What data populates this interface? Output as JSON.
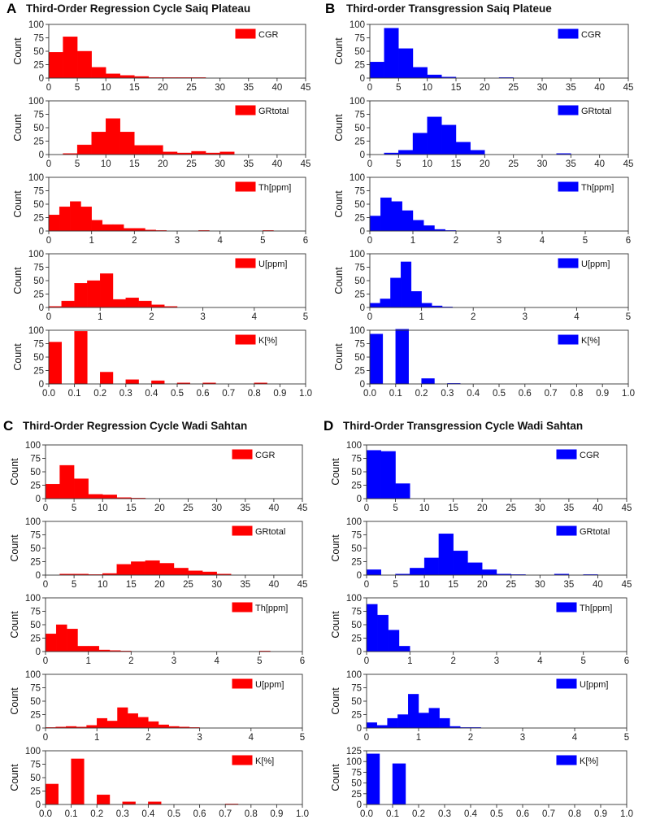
{
  "colors": {
    "red": "#ff0000",
    "blue": "#0000ff"
  },
  "chart_data": [
    {
      "panel_label": "A",
      "title": "Third-Order Regression Cycle Saiq Plateau",
      "color": "red",
      "subplots": [
        {
          "type": "bar",
          "legend": "CGR",
          "ylabel": "Count",
          "xlim": [
            0,
            45
          ],
          "xticks": [
            0,
            5,
            10,
            15,
            20,
            25,
            30,
            35,
            40,
            45
          ],
          "ylim": [
            0,
            100
          ],
          "yticks": [
            0,
            25,
            50,
            75,
            100
          ],
          "bin_width": 2.5,
          "bins": [
            0,
            2.5,
            5,
            7.5,
            10,
            12.5,
            15,
            17.5,
            20,
            22.5,
            25,
            27.5,
            30
          ],
          "values": [
            48,
            77,
            50,
            20,
            8,
            5,
            3,
            1,
            1,
            1,
            1,
            0,
            0
          ]
        },
        {
          "type": "bar",
          "legend": "GRtotal",
          "ylabel": "Count",
          "xlim": [
            0,
            45
          ],
          "xticks": [
            0,
            5,
            10,
            15,
            20,
            25,
            30,
            35,
            40,
            45
          ],
          "ylim": [
            0,
            100
          ],
          "yticks": [
            0,
            25,
            50,
            75,
            100
          ],
          "bin_width": 2.5,
          "bins": [
            2.5,
            5,
            7.5,
            10,
            12.5,
            15,
            17.5,
            20,
            22.5,
            25,
            27.5,
            30
          ],
          "values": [
            2,
            18,
            42,
            67,
            42,
            17,
            17,
            5,
            3,
            6,
            3,
            5
          ]
        },
        {
          "type": "bar",
          "legend": "Th[ppm]",
          "ylabel": "Count",
          "xlim": [
            0,
            6
          ],
          "xticks": [
            0,
            1,
            2,
            3,
            4,
            5,
            6
          ],
          "ylim": [
            0,
            100
          ],
          "yticks": [
            0,
            25,
            50,
            75,
            100
          ],
          "bin_width": 0.25,
          "bins": [
            0,
            0.25,
            0.5,
            0.75,
            1,
            1.25,
            1.5,
            1.75,
            2,
            2.25,
            2.5,
            3.5,
            5
          ],
          "values": [
            30,
            45,
            55,
            45,
            20,
            12,
            12,
            5,
            5,
            2,
            1,
            1,
            1
          ]
        },
        {
          "type": "bar",
          "legend": "U[ppm]",
          "ylabel": "Count",
          "xlim": [
            0,
            5
          ],
          "xticks": [
            0,
            1,
            2,
            3,
            4,
            5
          ],
          "ylim": [
            0,
            100
          ],
          "yticks": [
            0,
            25,
            50,
            75,
            100
          ],
          "bin_width": 0.25,
          "bins": [
            0,
            0.25,
            0.5,
            0.75,
            1,
            1.25,
            1.5,
            1.75,
            2,
            2.25
          ],
          "values": [
            2,
            12,
            45,
            50,
            63,
            15,
            18,
            12,
            5,
            2
          ]
        },
        {
          "type": "bar",
          "legend": "K[%]",
          "ylabel": "Count",
          "xlim": [
            0,
            1
          ],
          "xticks": [
            0.0,
            0.1,
            0.2,
            0.3,
            0.4,
            0.5,
            0.6,
            0.7,
            0.8,
            0.9,
            1.0
          ],
          "ylim": [
            0,
            100
          ],
          "yticks": [
            0,
            25,
            50,
            75,
            100
          ],
          "bin_width": 0.05,
          "bins": [
            0,
            0.1,
            0.2,
            0.3,
            0.4,
            0.5,
            0.6,
            0.8
          ],
          "values": [
            78,
            98,
            22,
            8,
            6,
            2,
            2,
            2
          ]
        }
      ]
    },
    {
      "panel_label": "B",
      "title": "Third-order Transgression Saiq Plateue",
      "color": "blue",
      "subplots": [
        {
          "type": "bar",
          "legend": "CGR",
          "ylabel": "Count",
          "xlim": [
            0,
            45
          ],
          "xticks": [
            0,
            5,
            10,
            15,
            20,
            25,
            30,
            35,
            40,
            45
          ],
          "ylim": [
            0,
            100
          ],
          "yticks": [
            0,
            25,
            50,
            75,
            100
          ],
          "bin_width": 2.5,
          "bins": [
            0,
            2.5,
            5,
            7.5,
            10,
            12.5,
            22.5
          ],
          "values": [
            30,
            93,
            55,
            20,
            6,
            2,
            1
          ]
        },
        {
          "type": "bar",
          "legend": "GRtotal",
          "ylabel": "Count",
          "xlim": [
            0,
            45
          ],
          "xticks": [
            0,
            5,
            10,
            15,
            20,
            25,
            30,
            35,
            40,
            45
          ],
          "ylim": [
            0,
            100
          ],
          "yticks": [
            0,
            25,
            50,
            75,
            100
          ],
          "bin_width": 2.5,
          "bins": [
            2.5,
            5,
            7.5,
            10,
            12.5,
            15,
            17.5,
            32.5
          ],
          "values": [
            3,
            8,
            40,
            70,
            55,
            23,
            8,
            2
          ]
        },
        {
          "type": "bar",
          "legend": "Th[ppm]",
          "ylabel": "Count",
          "xlim": [
            0,
            6
          ],
          "xticks": [
            0,
            1,
            2,
            3,
            4,
            5,
            6
          ],
          "ylim": [
            0,
            100
          ],
          "yticks": [
            0,
            25,
            50,
            75,
            100
          ],
          "bin_width": 0.25,
          "bins": [
            0,
            0.25,
            0.5,
            0.75,
            1,
            1.25,
            1.5,
            1.75
          ],
          "values": [
            28,
            62,
            55,
            38,
            20,
            10,
            3,
            1
          ]
        },
        {
          "type": "bar",
          "legend": "U[ppm]",
          "ylabel": "Count",
          "xlim": [
            0,
            5
          ],
          "xticks": [
            0,
            1,
            2,
            3,
            4,
            5
          ],
          "ylim": [
            0,
            100
          ],
          "yticks": [
            0,
            25,
            50,
            75,
            100
          ],
          "bin_width": 0.2,
          "bins": [
            0,
            0.2,
            0.4,
            0.6,
            0.8,
            1.0,
            1.2,
            1.4
          ],
          "values": [
            8,
            16,
            55,
            85,
            30,
            8,
            3,
            1
          ]
        },
        {
          "type": "bar",
          "legend": "K[%]",
          "ylabel": "Count",
          "xlim": [
            0,
            1
          ],
          "xticks": [
            0.0,
            0.1,
            0.2,
            0.3,
            0.4,
            0.5,
            0.6,
            0.7,
            0.8,
            0.9,
            1.0
          ],
          "ylim": [
            0,
            100
          ],
          "yticks": [
            0,
            25,
            50,
            75,
            100
          ],
          "bin_width": 0.05,
          "bins": [
            0,
            0.1,
            0.2,
            0.3
          ],
          "values": [
            93,
            102,
            10,
            1
          ]
        }
      ]
    },
    {
      "panel_label": "C",
      "title": "Third-Order Regression Cycle Wadi Sahtan",
      "color": "red",
      "subplots": [
        {
          "type": "bar",
          "legend": "CGR",
          "ylabel": "Count",
          "xlim": [
            0,
            45
          ],
          "xticks": [
            0,
            5,
            10,
            15,
            20,
            25,
            30,
            35,
            40,
            45
          ],
          "ylim": [
            0,
            100
          ],
          "yticks": [
            0,
            25,
            50,
            75,
            100
          ],
          "bin_width": 2.5,
          "bins": [
            0,
            2.5,
            5,
            7.5,
            10,
            12.5,
            15
          ],
          "values": [
            27,
            62,
            37,
            8,
            7,
            2,
            1
          ]
        },
        {
          "type": "bar",
          "legend": "GRtotal",
          "ylabel": "Count",
          "xlim": [
            0,
            45
          ],
          "xticks": [
            0,
            5,
            10,
            15,
            20,
            25,
            30,
            35,
            40,
            45
          ],
          "ylim": [
            0,
            100
          ],
          "yticks": [
            0,
            25,
            50,
            75,
            100
          ],
          "bin_width": 2.5,
          "bins": [
            2.5,
            5,
            7.5,
            10,
            12.5,
            15,
            17.5,
            20,
            22.5,
            25,
            27.5,
            30
          ],
          "values": [
            2,
            2,
            1,
            3,
            20,
            25,
            27,
            22,
            13,
            8,
            6,
            2
          ]
        },
        {
          "type": "bar",
          "legend": "Th[ppm]",
          "ylabel": "Count",
          "xlim": [
            0,
            6
          ],
          "xticks": [
            0,
            1,
            2,
            3,
            4,
            5,
            6
          ],
          "ylim": [
            0,
            100
          ],
          "yticks": [
            0,
            25,
            50,
            75,
            100
          ],
          "bin_width": 0.25,
          "bins": [
            0,
            0.25,
            0.5,
            0.75,
            1,
            1.25,
            1.5,
            1.75,
            5
          ],
          "values": [
            33,
            50,
            42,
            10,
            10,
            3,
            2,
            1,
            1
          ]
        },
        {
          "type": "bar",
          "legend": "U[ppm]",
          "ylabel": "Count",
          "xlim": [
            0,
            5
          ],
          "xticks": [
            0,
            1,
            2,
            3,
            4,
            5
          ],
          "ylim": [
            0,
            100
          ],
          "yticks": [
            0,
            25,
            50,
            75,
            100
          ],
          "bin_width": 0.2,
          "bins": [
            0,
            0.2,
            0.4,
            0.6,
            0.8,
            1.0,
            1.2,
            1.4,
            1.6,
            1.8,
            2.0,
            2.2,
            2.4,
            2.6,
            2.8
          ],
          "values": [
            1,
            2,
            3,
            2,
            5,
            18,
            13,
            38,
            27,
            20,
            12,
            6,
            3,
            2,
            1
          ]
        },
        {
          "type": "bar",
          "legend": "K[%]",
          "ylabel": "Count",
          "xlim": [
            0,
            1
          ],
          "xticks": [
            0.0,
            0.1,
            0.2,
            0.3,
            0.4,
            0.5,
            0.6,
            0.7,
            0.8,
            0.9,
            1.0
          ],
          "ylim": [
            0,
            100
          ],
          "yticks": [
            0,
            25,
            50,
            75,
            100
          ],
          "bin_width": 0.05,
          "bins": [
            0,
            0.1,
            0.2,
            0.3,
            0.4,
            0.7
          ],
          "values": [
            38,
            85,
            18,
            5,
            5,
            1
          ]
        }
      ]
    },
    {
      "panel_label": "D",
      "title": "Third-Order Transgression Cycle Wadi Sahtan",
      "color": "blue",
      "subplots": [
        {
          "type": "bar",
          "legend": "CGR",
          "ylabel": "Count",
          "xlim": [
            0,
            45
          ],
          "xticks": [
            0,
            5,
            10,
            15,
            20,
            25,
            30,
            35,
            40,
            45
          ],
          "ylim": [
            0,
            100
          ],
          "yticks": [
            0,
            25,
            50,
            75,
            100
          ],
          "bin_width": 2.5,
          "bins": [
            0,
            2.5,
            5
          ],
          "values": [
            90,
            88,
            28
          ]
        },
        {
          "type": "bar",
          "legend": "GRtotal",
          "ylabel": "Count",
          "xlim": [
            0,
            45
          ],
          "xticks": [
            0,
            5,
            10,
            15,
            20,
            25,
            30,
            35,
            40,
            45
          ],
          "ylim": [
            0,
            100
          ],
          "yticks": [
            0,
            25,
            50,
            75,
            100
          ],
          "bin_width": 2.5,
          "bins": [
            0,
            5,
            7.5,
            10,
            12.5,
            15,
            17.5,
            20,
            22.5,
            25,
            32.5,
            37.5
          ],
          "values": [
            10,
            2,
            13,
            32,
            77,
            45,
            23,
            10,
            2,
            1,
            2,
            1
          ]
        },
        {
          "type": "bar",
          "legend": "Th[ppm]",
          "ylabel": "Count",
          "xlim": [
            0,
            6
          ],
          "xticks": [
            0,
            1,
            2,
            3,
            4,
            5,
            6
          ],
          "ylim": [
            0,
            100
          ],
          "yticks": [
            0,
            25,
            50,
            75,
            100
          ],
          "bin_width": 0.25,
          "bins": [
            0,
            0.25,
            0.5,
            0.75
          ],
          "values": [
            88,
            68,
            40,
            10
          ]
        },
        {
          "type": "bar",
          "legend": "U[ppm]",
          "ylabel": "Count",
          "xlim": [
            0,
            5
          ],
          "xticks": [
            0,
            1,
            2,
            3,
            4,
            5
          ],
          "ylim": [
            0,
            100
          ],
          "yticks": [
            0,
            25,
            50,
            75,
            100
          ],
          "bin_width": 0.2,
          "bins": [
            0,
            0.2,
            0.4,
            0.6,
            0.8,
            1.0,
            1.2,
            1.4,
            1.6,
            1.8,
            2.0
          ],
          "values": [
            10,
            5,
            18,
            25,
            63,
            28,
            37,
            18,
            3,
            1,
            1
          ]
        },
        {
          "type": "bar",
          "legend": "K[%]",
          "ylabel": "Count",
          "xlim": [
            0,
            1
          ],
          "xticks": [
            0.0,
            0.1,
            0.2,
            0.3,
            0.4,
            0.5,
            0.6,
            0.7,
            0.8,
            0.9,
            1.0
          ],
          "ylim": [
            0,
            125
          ],
          "yticks": [
            0,
            25,
            50,
            75,
            100,
            125
          ],
          "bin_width": 0.05,
          "bins": [
            0,
            0.1
          ],
          "values": [
            118,
            95
          ]
        }
      ]
    }
  ]
}
